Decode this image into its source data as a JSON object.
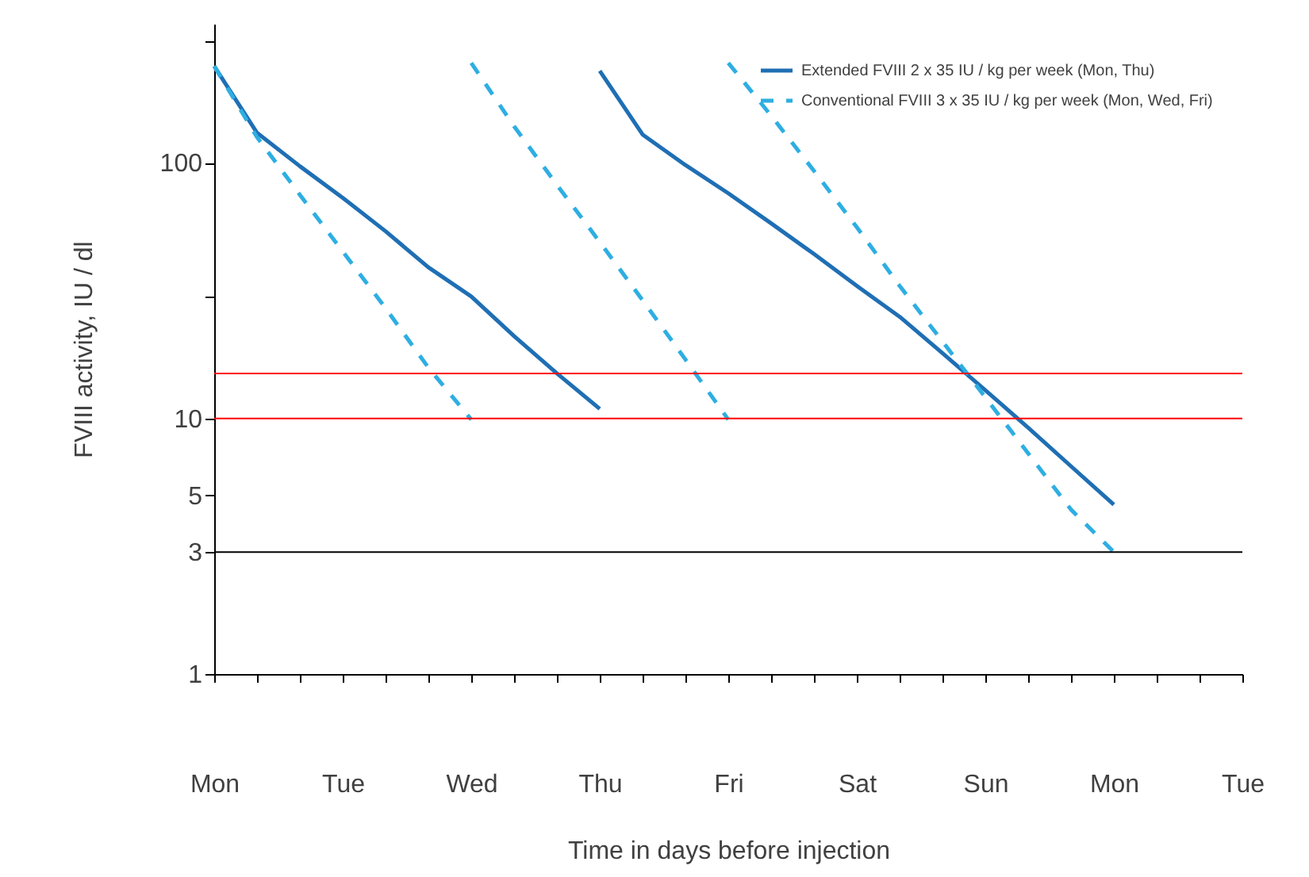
{
  "chart_data": {
    "type": "line",
    "xlabel": "Time in days before injection",
    "ylabel": "FVIII activity, IU / dl",
    "log": "y",
    "grid": false,
    "legend": "top right",
    "marker": "none",
    "categories": [
      "Mon",
      null,
      null,
      "Tue",
      null,
      null,
      "Wed",
      null,
      null,
      "Thu",
      null,
      null,
      "Fri",
      null,
      null,
      "Sat",
      null,
      null,
      "Sun",
      null,
      null,
      "Mon",
      null,
      null,
      "Tue"
    ],
    "ylim": [
      1,
      350
    ],
    "yticks": [
      1,
      3,
      5,
      10,
      {
        "value": 30,
        "label": null
      },
      100,
      {
        "value": 300,
        "label": null
      }
    ],
    "ref_lines": [
      {
        "axis": "y",
        "value": 10,
        "color": "#ff0000"
      },
      {
        "axis": "y",
        "value": 15,
        "color": "#ff0000"
      },
      {
        "axis": "y",
        "value": 3,
        "color": "#000000"
      }
    ],
    "series": [
      {
        "name": "Extended FVIII 2 x 35 IU / kg per week (Mon, Thu)",
        "color": "#1f6fb4",
        "line_style": "solid",
        "values": [
          239,
          131,
          97,
          73,
          54,
          39,
          30,
          21,
          15,
          10.9,
          null,
          null,
          null,
          null,
          null,
          null,
          null,
          null,
          null,
          null,
          null,
          null,
          null,
          null,
          null
        ]
      },
      {
        "color": "#1f6fb4",
        "line_style": "solid",
        "values": [
          null,
          null,
          null,
          null,
          null,
          null,
          null,
          null,
          null,
          229,
          129,
          98,
          76,
          58,
          44,
          33,
          25,
          18,
          12.9,
          9.2,
          6.5,
          4.6,
          null,
          null,
          null
        ]
      },
      {
        "name": "Conventional FVIII 3 x 35 IU / kg per week (Mon, Wed, Fri)",
        "color": "#2eaee2",
        "line_style": "dashed",
        "values": [
          239,
          126,
          75,
          45,
          27,
          15.8,
          9.9,
          null,
          null,
          null,
          null,
          null,
          null,
          null,
          null,
          null,
          null,
          null,
          null,
          null,
          null,
          null,
          null,
          null,
          null
        ]
      },
      {
        "color": "#2eaee2",
        "line_style": "dashed",
        "values": [
          null,
          null,
          null,
          null,
          null,
          null,
          246,
          139,
          82,
          49,
          29,
          17,
          9.9,
          null,
          null,
          null,
          null,
          null,
          null,
          null,
          null,
          null,
          null,
          null,
          null
        ]
      },
      {
        "color": "#2eaee2",
        "line_style": "dashed",
        "values": [
          null,
          null,
          null,
          null,
          null,
          null,
          null,
          null,
          null,
          null,
          null,
          null,
          246,
          153,
          93,
          56,
          33,
          20,
          12.1,
          7.3,
          4.4,
          3.0,
          null,
          null,
          null
        ]
      }
    ]
  }
}
